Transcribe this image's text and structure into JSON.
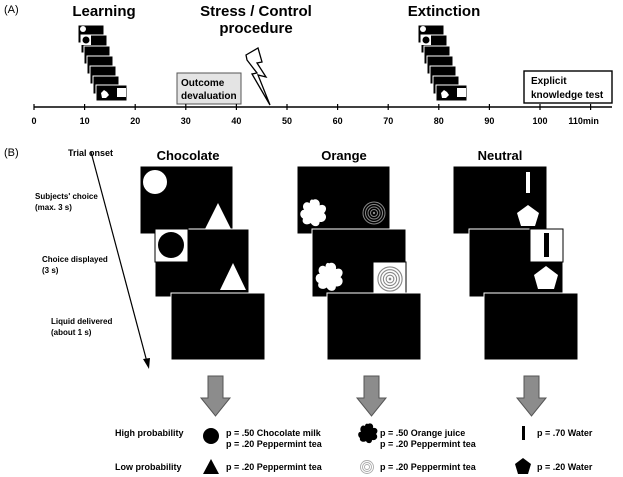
{
  "panel_a": {
    "label": "(A)",
    "phases": {
      "learning": "Learning",
      "stress_line1": "Stress / Control",
      "stress_line2": "procedure",
      "extinction": "Extinction"
    },
    "outcome_box": {
      "line1": "Outcome",
      "line2": "devaluation"
    },
    "explicit_box": {
      "line1": "Explicit",
      "line2": "knowledge test"
    },
    "axis_ticks": [
      "0",
      "10",
      "20",
      "30",
      "40",
      "50",
      "60",
      "70",
      "80",
      "90",
      "100",
      "110min"
    ]
  },
  "panel_b": {
    "label": "(B)",
    "timeline": {
      "trial_onset": "Trial onset",
      "subjects_choice_1": "Subjects' choice",
      "subjects_choice_2": "(max. 3 s)",
      "choice_displayed_1": "Choice displayed",
      "choice_displayed_2": "(3 s)",
      "liquid_1": "Liquid delivered",
      "liquid_2": "(about 1 s)"
    },
    "columns": {
      "chocolate": "Chocolate",
      "orange": "Orange",
      "neutral": "Neutral"
    },
    "rows": {
      "high": "High probability",
      "low": "Low probability"
    },
    "outcomes": {
      "choc_high_1": "p = .50 Chocolate milk",
      "choc_high_2": "p = .20 Peppermint tea",
      "choc_low": "p = .20 Peppermint tea",
      "orange_high_1": "p = .50 Orange juice",
      "orange_high_2": "p = .20 Peppermint tea",
      "orange_low": "p = .20 Peppermint tea",
      "neutral_high": "p = .70 Water",
      "neutral_low": "p = .20 Water"
    }
  }
}
